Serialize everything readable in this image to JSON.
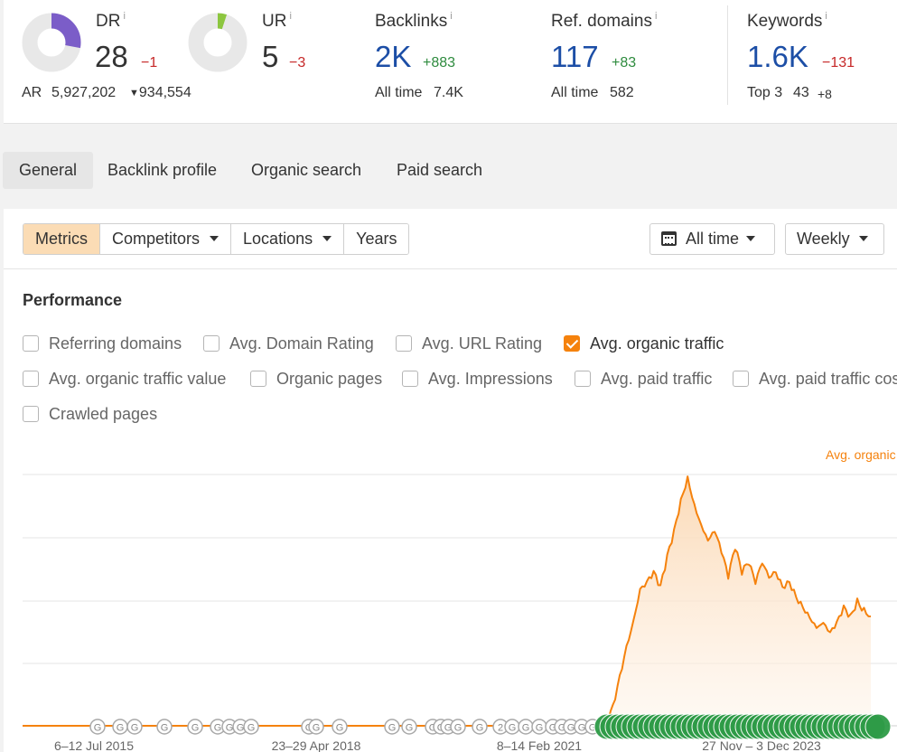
{
  "metrics": {
    "dr": {
      "label": "DR",
      "info": "i",
      "value": "28",
      "change": "−1",
      "ring_fraction": 0.28,
      "ring_color": "#7b5dc8"
    },
    "ur": {
      "label": "UR",
      "info": "i",
      "value": "5",
      "change": "−3",
      "ring_fraction": 0.05,
      "ring_color": "#8cc63f"
    },
    "ar": {
      "label": "AR",
      "value": "5,927,202",
      "change": "934,554"
    },
    "backlinks": {
      "label": "Backlinks",
      "info": "i",
      "value": "2K",
      "change": "+883",
      "sub_label": "All time",
      "sub_value": "7.4K"
    },
    "ref_domains": {
      "label": "Ref. domains",
      "info": "i",
      "value": "117",
      "change": "+83",
      "sub_label": "All time",
      "sub_value": "582"
    },
    "keywords": {
      "label": "Keywords",
      "info": "i",
      "value": "1.6K",
      "change": "−131",
      "sub_label": "Top 3",
      "sub_value": "43",
      "sub_change": "+8"
    }
  },
  "tabs": [
    {
      "label": "General",
      "active": true
    },
    {
      "label": "Backlink profile",
      "active": false
    },
    {
      "label": "Organic search",
      "active": false
    },
    {
      "label": "Paid search",
      "active": false
    }
  ],
  "toolbar": {
    "segments": [
      {
        "label": "Metrics",
        "active": true,
        "dropdown": false
      },
      {
        "label": "Competitors",
        "active": false,
        "dropdown": true
      },
      {
        "label": "Locations",
        "active": false,
        "dropdown": true
      },
      {
        "label": "Years",
        "active": false,
        "dropdown": false
      }
    ],
    "date_range": "All time",
    "interval": "Weekly"
  },
  "performance": {
    "title": "Performance",
    "checkboxes": [
      {
        "label": "Referring domains",
        "checked": false
      },
      {
        "label": "Avg. Domain Rating",
        "checked": false
      },
      {
        "label": "Avg. URL Rating",
        "checked": false
      },
      {
        "label": "Avg. organic traffic",
        "checked": true
      },
      {
        "label": "Avg. organic traffic value",
        "checked": false
      },
      {
        "label": "Organic pages",
        "checked": false
      },
      {
        "label": "Avg. Impressions",
        "checked": false
      },
      {
        "label": "Avg. paid traffic",
        "checked": false
      },
      {
        "label": "Avg. paid traffic cost",
        "checked": false
      },
      {
        "label": "Crawled pages",
        "checked": false
      }
    ]
  },
  "chart_data": {
    "type": "area",
    "series": [
      {
        "name": "Avg. organic traffic",
        "color": "#f5820d"
      }
    ],
    "x_tick_labels": [
      "6–12 Jul 2015",
      "23–29 Apr 2018",
      "8–14 Feb 2021",
      "27 Nov – 3 Dec 2023"
    ],
    "x_range": [
      "2015-01",
      "2025-06"
    ],
    "y_range": [
      0,
      100
    ],
    "grid": true,
    "legend": "top-right",
    "points": [
      [
        "2015-01",
        0
      ],
      [
        "2021-08",
        0
      ],
      [
        "2022-01",
        0
      ],
      [
        "2022-03",
        2
      ],
      [
        "2022-04",
        8
      ],
      [
        "2022-05",
        20
      ],
      [
        "2022-06",
        32
      ],
      [
        "2022-07",
        42
      ],
      [
        "2022-08",
        55
      ],
      [
        "2022-09",
        58
      ],
      [
        "2022-10",
        62
      ],
      [
        "2022-11",
        56
      ],
      [
        "2022-12",
        68
      ],
      [
        "2023-01",
        78
      ],
      [
        "2023-02",
        90
      ],
      [
        "2023-03",
        99
      ],
      [
        "2023-04",
        88
      ],
      [
        "2023-05",
        80
      ],
      [
        "2023-06",
        74
      ],
      [
        "2023-07",
        78
      ],
      [
        "2023-08",
        70
      ],
      [
        "2023-09",
        60
      ],
      [
        "2023-10",
        72
      ],
      [
        "2023-11",
        62
      ],
      [
        "2023-12",
        66
      ],
      [
        "2023-06b",
        0
      ],
      [
        "2024-01",
        58
      ],
      [
        "2024-02",
        66
      ],
      [
        "2024-03",
        60
      ],
      [
        "2024-04",
        62
      ],
      [
        "2024-05",
        56
      ],
      [
        "2024-06",
        58
      ],
      [
        "2024-07",
        52
      ],
      [
        "2024-08",
        48
      ],
      [
        "2024-09",
        44
      ],
      [
        "2024-10",
        40
      ],
      [
        "2024-11",
        42
      ],
      [
        "2024-12",
        38
      ],
      [
        "2025-01",
        42
      ],
      [
        "2025-02",
        48
      ],
      [
        "2025-03",
        44
      ],
      [
        "2025-04",
        50
      ],
      [
        "2025-05",
        46
      ],
      [
        "2025-06",
        44
      ]
    ]
  }
}
